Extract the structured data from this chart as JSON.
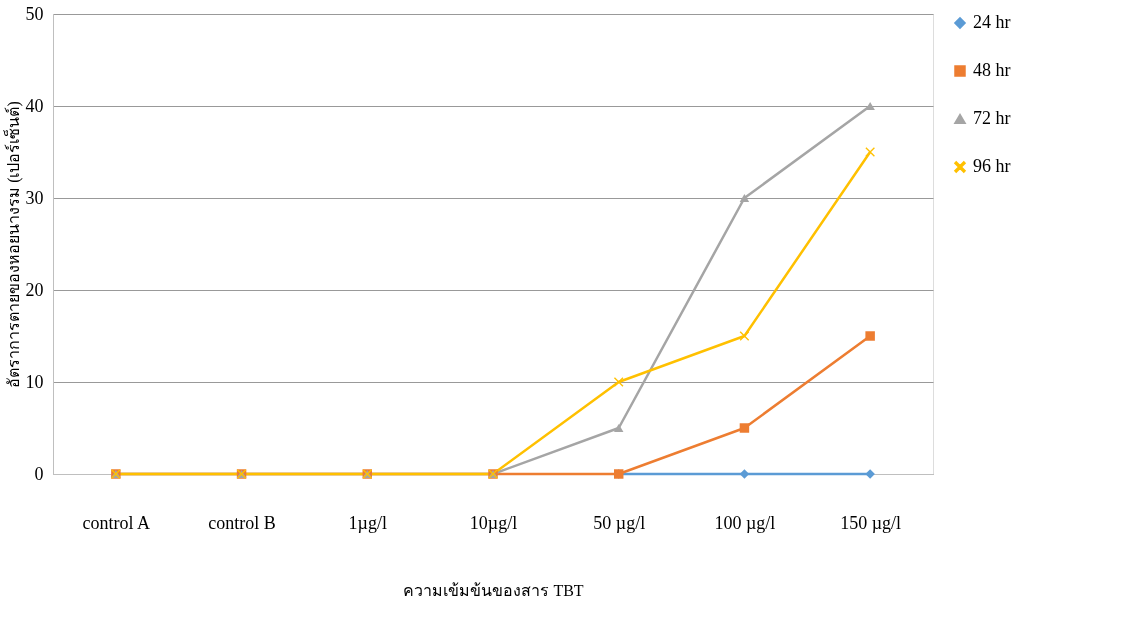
{
  "chart_data": {
    "type": "line",
    "xlabel": "ความเข้มข้นของสาร TBT",
    "ylabel": "อัตราการตายของหอยนางรม  (เปอร์เซ็นต์)",
    "categories": [
      "control A",
      "control B",
      "1µg/l",
      "10µg/l",
      "50 µg/l",
      "100 µg/l",
      "150 µg/l"
    ],
    "series": [
      {
        "name": "24 hr",
        "color": "#5b9bd5",
        "marker": "diamond",
        "values": [
          null,
          null,
          null,
          null,
          0,
          0,
          0
        ]
      },
      {
        "name": "48 hr",
        "color": "#ed7d31",
        "marker": "square",
        "values": [
          0,
          0,
          0,
          0,
          0,
          5,
          15
        ]
      },
      {
        "name": "72 hr",
        "color": "#a5a5a5",
        "marker": "triangle",
        "values": [
          0,
          0,
          0,
          0,
          5,
          30,
          40
        ]
      },
      {
        "name": "96 hr",
        "color": "#ffc000",
        "marker": "cross",
        "values": [
          0,
          0,
          0,
          0,
          10,
          15,
          35
        ]
      }
    ],
    "ylim": [
      0,
      50
    ],
    "yticks": [
      0,
      10,
      20,
      30,
      40,
      50
    ],
    "grid": "y",
    "legend": "right",
    "line_style": "solid"
  }
}
